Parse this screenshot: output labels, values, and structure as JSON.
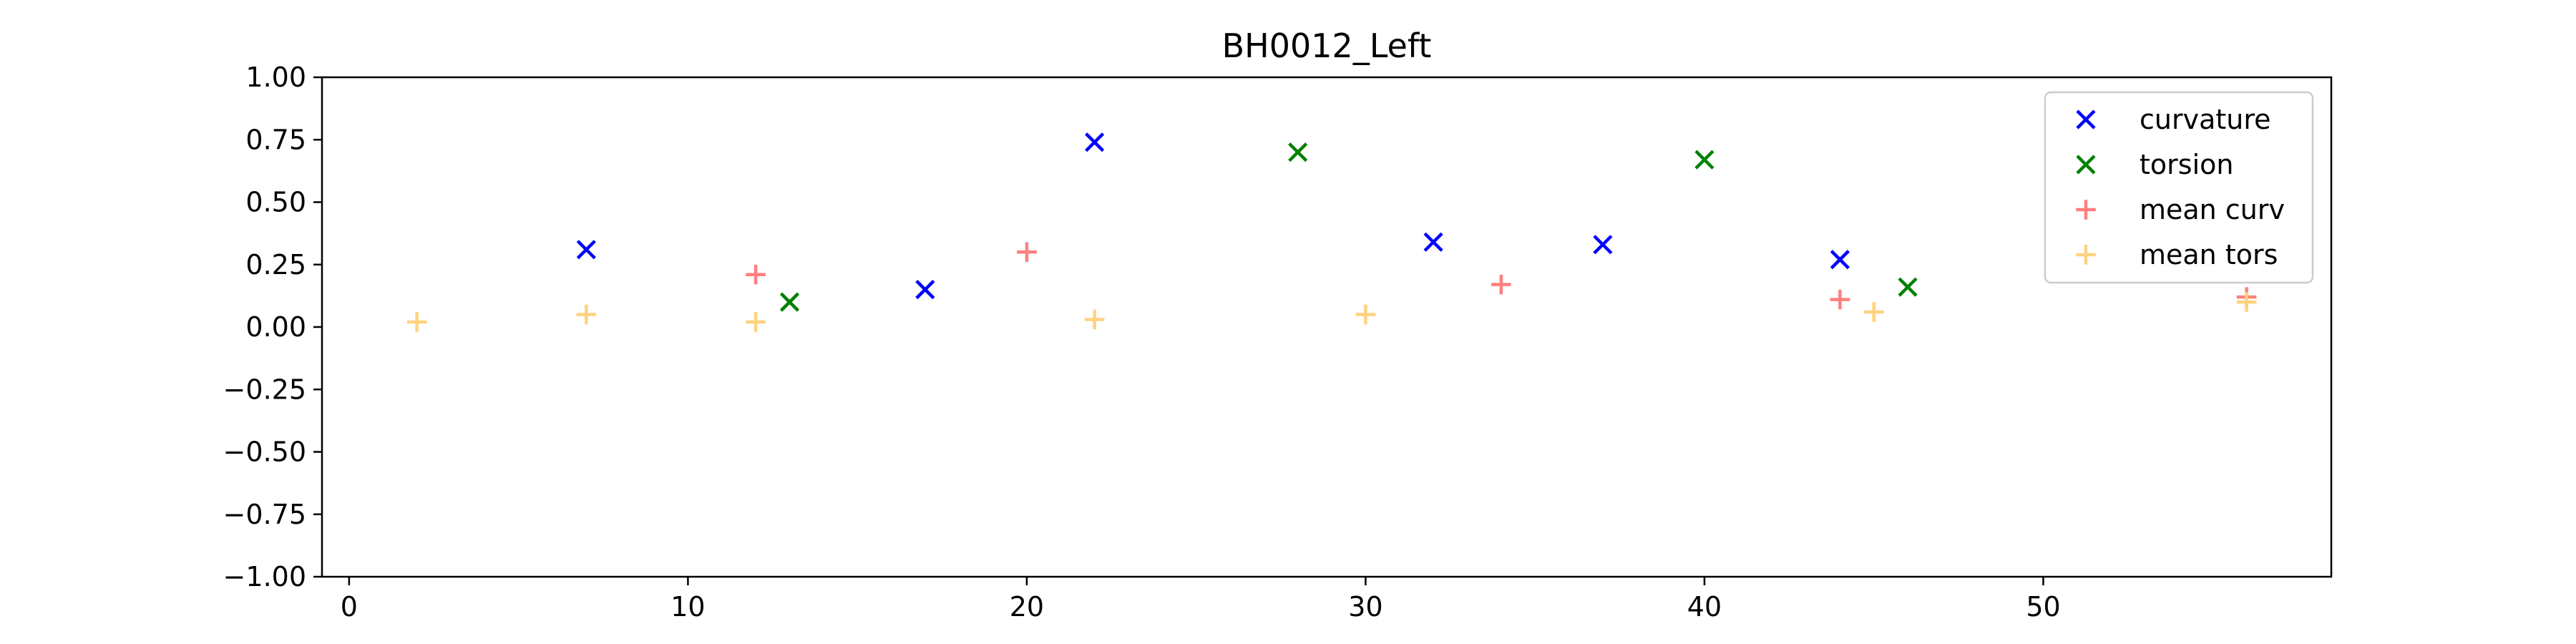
{
  "chart_data": {
    "type": "scatter",
    "title": "BH0012_Left",
    "xlabel": "",
    "ylabel": "",
    "xlim": [
      -0.8,
      58.5
    ],
    "ylim": [
      -1.0,
      1.0
    ],
    "xticks": [
      0,
      10,
      20,
      30,
      40,
      50
    ],
    "xtick_labels": [
      "0",
      "10",
      "20",
      "30",
      "40",
      "50"
    ],
    "yticks": [
      1.0,
      0.75,
      0.5,
      0.25,
      0.0,
      -0.25,
      -0.5,
      -0.75,
      -1.0
    ],
    "ytick_labels": [
      "1.00",
      "0.75",
      "0.50",
      "0.25",
      "0.00",
      "−0.25",
      "−0.50",
      "−0.75",
      "−1.00"
    ],
    "grid": false,
    "legend_position": "top-right",
    "series": [
      {
        "name": "curvature",
        "marker": "x",
        "color": "#0000ff",
        "x": [
          7,
          17,
          22,
          32,
          37,
          44
        ],
        "y": [
          0.31,
          0.15,
          0.74,
          0.34,
          0.33,
          0.27
        ]
      },
      {
        "name": "torsion",
        "marker": "x",
        "color": "#008000",
        "x": [
          13,
          28,
          40,
          46
        ],
        "y": [
          0.1,
          0.7,
          0.67,
          0.16
        ]
      },
      {
        "name": "mean curv",
        "marker": "+",
        "color": "#ff7f7f",
        "x": [
          12,
          20,
          34,
          44,
          56
        ],
        "y": [
          0.21,
          0.3,
          0.17,
          0.11,
          0.12
        ]
      },
      {
        "name": "mean tors",
        "marker": "+",
        "color": "#ffd27f",
        "x": [
          2,
          7,
          12,
          22,
          30,
          45,
          56
        ],
        "y": [
          0.02,
          0.05,
          0.02,
          0.03,
          0.05,
          0.06,
          0.1
        ]
      }
    ]
  }
}
